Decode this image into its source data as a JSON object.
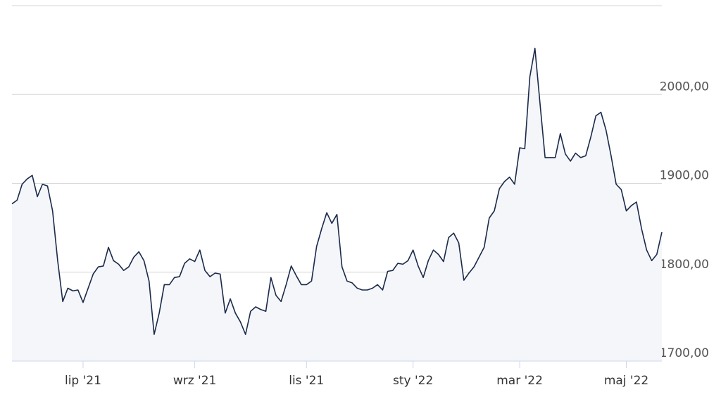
{
  "chart_data": {
    "type": "line",
    "categories": [
      null,
      null,
      null,
      null,
      null,
      null,
      null,
      null,
      null,
      null,
      null,
      null,
      null,
      null,
      "lip '21",
      null,
      null,
      null,
      null,
      null,
      null,
      null,
      null,
      null,
      null,
      null,
      null,
      null,
      null,
      null,
      null,
      null,
      null,
      null,
      null,
      null,
      "wrz '21",
      null,
      null,
      null,
      null,
      null,
      null,
      null,
      null,
      null,
      null,
      null,
      null,
      null,
      null,
      null,
      null,
      null,
      null,
      null,
      null,
      null,
      "lis '21",
      null,
      null,
      null,
      null,
      null,
      null,
      null,
      null,
      null,
      null,
      null,
      null,
      null,
      null,
      null,
      null,
      null,
      null,
      null,
      null,
      "sty '22",
      null,
      null,
      null,
      null,
      null,
      null,
      null,
      null,
      null,
      null,
      null,
      null,
      null,
      null,
      null,
      null,
      null,
      null,
      null,
      null,
      "mar '22",
      null,
      null,
      null,
      null,
      null,
      null,
      null,
      null,
      null,
      null,
      null,
      null,
      null,
      null,
      null,
      null,
      null,
      null,
      null,
      null,
      "maj '22",
      null,
      null,
      null,
      null,
      null,
      null,
      null
    ],
    "values": [
      1877,
      1881,
      1899,
      1905,
      1909,
      1885,
      1899,
      1897,
      1869,
      1813,
      1767,
      1782,
      1779,
      1780,
      1766,
      1782,
      1798,
      1806,
      1807,
      1828,
      1813,
      1809,
      1802,
      1806,
      1817,
      1823,
      1813,
      1790,
      1730,
      1754,
      1786,
      1786,
      1794,
      1795,
      1810,
      1815,
      1812,
      1825,
      1802,
      1795,
      1799,
      1798,
      1754,
      1770,
      1754,
      1744,
      1730,
      1756,
      1761,
      1758,
      1756,
      1794,
      1774,
      1767,
      1786,
      1807,
      1796,
      1786,
      1786,
      1790,
      1829,
      1849,
      1867,
      1855,
      1865,
      1806,
      1790,
      1788,
      1782,
      1780,
      1780,
      1782,
      1786,
      1780,
      1801,
      1802,
      1810,
      1809,
      1813,
      1825,
      1807,
      1794,
      1813,
      1825,
      1820,
      1812,
      1839,
      1844,
      1833,
      1791,
      1799,
      1806,
      1817,
      1828,
      1861,
      1869,
      1894,
      1902,
      1907,
      1899,
      1940,
      1939,
      2020,
      2052,
      1990,
      1929,
      1929,
      1929,
      1956,
      1933,
      1925,
      1934,
      1929,
      1931,
      1952,
      1976,
      1980,
      1960,
      1931,
      1899,
      1893,
      1869,
      1875,
      1879,
      1849,
      1825,
      1813,
      1820,
      1845
    ],
    "color": "#1b2a4a",
    "ylim": [
      1700,
      2100
    ],
    "yticks": [
      {
        "value": 1700,
        "label": "1700,00"
      },
      {
        "value": 1800,
        "label": "1800,00"
      },
      {
        "value": 1900,
        "label": "1900,00"
      },
      {
        "value": 2000,
        "label": "2000,00"
      }
    ],
    "grid": true
  }
}
